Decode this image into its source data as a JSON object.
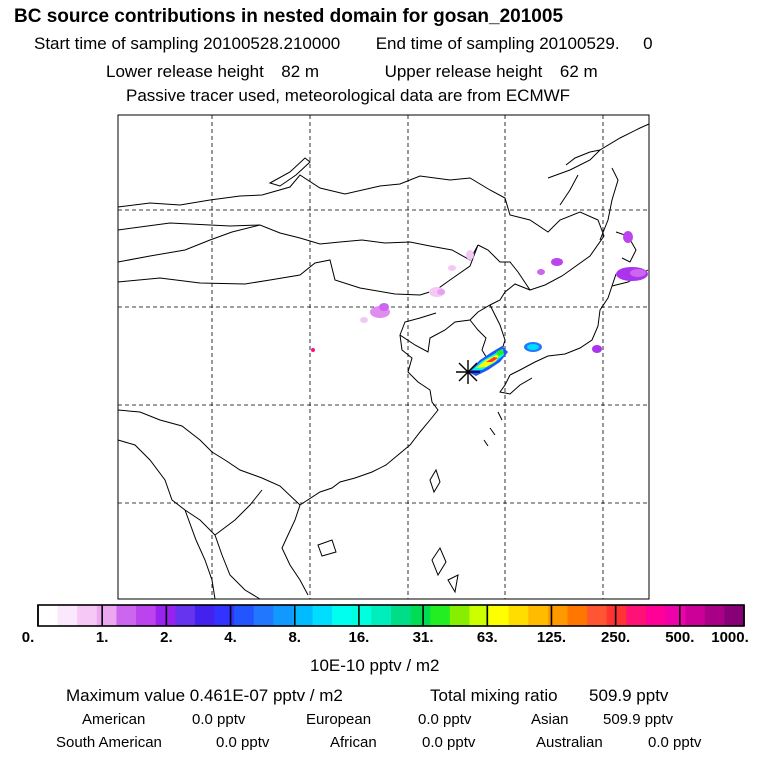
{
  "header": {
    "title": "BC  source contributions in nested domain for gosan_201005",
    "start_label": "Start time of sampling",
    "start_value": "20100528.210000",
    "end_label": "End time of sampling",
    "end_value": "20100529.     0",
    "lower_label": "Lower release height",
    "lower_value": "82 m",
    "upper_label": "Upper release height",
    "upper_value": "62 m",
    "note": "Passive tracer used, meteorological data are from ECMWF"
  },
  "colorbar": {
    "ticks": [
      "0.",
      "1.",
      "2.",
      "4.",
      "8.",
      "16.",
      "31.",
      "63.",
      "125.",
      "250.",
      "500.",
      "1000."
    ],
    "colors": [
      "#ffffff",
      "#fce8fc",
      "#f5c8f5",
      "#eba8f0",
      "#cc66ee",
      "#bb44ee",
      "#9922ee",
      "#6633ee",
      "#4422ee",
      "#3333ff",
      "#2255ff",
      "#2277ff",
      "#1199ff",
      "#00bbff",
      "#00ddff",
      "#00ffee",
      "#00ffdd",
      "#00eebb",
      "#00dd88",
      "#00dd55",
      "#22ee22",
      "#88ee00",
      "#ccff00",
      "#ffff00",
      "#ffdd00",
      "#ffbb00",
      "#ff9900",
      "#ff7700",
      "#ff5533",
      "#ff3333",
      "#ff1177",
      "#ff0099",
      "#ee00aa",
      "#cc0099",
      "#aa0088",
      "#880077"
    ],
    "unit": "10E-10 pptv / m2"
  },
  "summary": {
    "max_label": "Maximum value",
    "max_value": "0.461E-07 pptv / m2",
    "total_label": "Total mixing ratio",
    "total_value": "509.9 pptv",
    "regions": [
      {
        "name": "American",
        "value": "0.0 pptv"
      },
      {
        "name": "European",
        "value": "0.0 pptv"
      },
      {
        "name": "Asian",
        "value": "509.9 pptv"
      },
      {
        "name": "South American",
        "value": "0.0 pptv"
      },
      {
        "name": "African",
        "value": "0.0 pptv"
      },
      {
        "name": "Australian",
        "value": "0.0 pptv"
      }
    ]
  }
}
